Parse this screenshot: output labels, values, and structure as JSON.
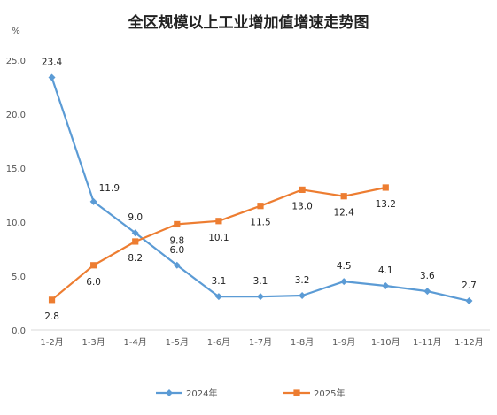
{
  "chart_data": {
    "type": "line",
    "title": "全区规模以上工业增加值增速走势图",
    "ylabel": "%",
    "xlabel": "",
    "ylim": [
      0,
      25
    ],
    "yticks": [
      0,
      5,
      10,
      15,
      20,
      25
    ],
    "ytick_labels": [
      "0.0",
      "5.0",
      "10.0",
      "15.0",
      "20.0",
      "25.0"
    ],
    "grid": false,
    "legend_position": "bottom",
    "categories": [
      "1-2月",
      "1-3月",
      "1-4月",
      "1-5月",
      "1-6月",
      "1-7月",
      "1-8月",
      "1-9月",
      "1-10月",
      "1-11月",
      "1-12月"
    ],
    "series": [
      {
        "name": "2024年",
        "color": "#5B9BD5",
        "marker": "diamond",
        "values": [
          23.4,
          11.9,
          9.0,
          6.0,
          3.1,
          3.1,
          3.2,
          4.5,
          4.1,
          3.6,
          2.7
        ],
        "labels": [
          "23.4",
          "11.9",
          "9.0",
          "6.0",
          "3.1",
          "3.1",
          "3.2",
          "4.5",
          "4.1",
          "3.6",
          "2.7"
        ],
        "label_position": [
          "above",
          "above-right",
          "above",
          "above",
          "above",
          "above",
          "above",
          "above",
          "above",
          "above",
          "above"
        ]
      },
      {
        "name": "2025年",
        "color": "#ED7D31",
        "marker": "square",
        "values": [
          2.8,
          6.0,
          8.2,
          9.8,
          10.1,
          11.5,
          13.0,
          12.4,
          13.2,
          null,
          null
        ],
        "labels": [
          "2.8",
          "6.0",
          "8.2",
          "9.8",
          "10.1",
          "11.5",
          "13.0",
          "12.4",
          "13.2",
          "",
          ""
        ],
        "label_position": [
          "below",
          "below",
          "below",
          "below",
          "below",
          "below",
          "below",
          "below",
          "below",
          "below",
          "below"
        ]
      }
    ]
  }
}
